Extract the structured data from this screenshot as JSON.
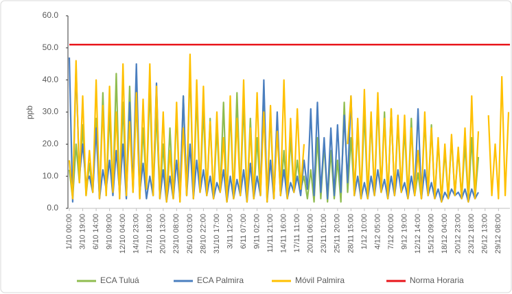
{
  "chart_data": {
    "type": "line",
    "y_label": "ppb",
    "categories": [
      "1/10 00:00",
      null,
      null,
      null,
      "3/10 19:00",
      null,
      null,
      null,
      "6/10 14:00",
      null,
      null,
      null,
      "9/10 09:00",
      null,
      null,
      null,
      "12/10 04:00",
      null,
      null,
      null,
      "14/10 23:00",
      null,
      null,
      null,
      "17/10 18:00",
      null,
      null,
      null,
      "20/10 13:00",
      null,
      null,
      null,
      "23/10 08:00",
      null,
      null,
      null,
      "26/10 03:00",
      null,
      null,
      null,
      "28/10 22:00",
      null,
      null,
      null,
      "31/10 17:00",
      null,
      null,
      null,
      "3/11 12:00",
      null,
      null,
      null,
      "6/11 07:00",
      null,
      null,
      null,
      "9/11 02:00",
      null,
      null,
      null,
      "11/11 21:00",
      null,
      null,
      null,
      "14/11 16:00",
      null,
      null,
      null,
      "17/11 11:00",
      null,
      null,
      null,
      "20/11 06:00",
      null,
      null,
      null,
      "23/11 01:00",
      null,
      null,
      null,
      "25/11 20:00",
      null,
      null,
      null,
      "28/11 15:00",
      null,
      null,
      null,
      "1/12 10:00",
      null,
      null,
      null,
      "4/12 05:00",
      null,
      null,
      null,
      "7/12 00:00",
      null,
      null,
      null,
      "9/12 19:00",
      null,
      null,
      null,
      "12/12 14:00",
      null,
      null,
      null,
      "15/12 09:00",
      null,
      null,
      null,
      "18/12 04:00",
      null,
      null,
      null,
      "20/12 23:00",
      null,
      null,
      null,
      "23/12 18:00",
      null,
      null,
      null,
      "26/12 13:00",
      null,
      null,
      null,
      "29/12 08:00",
      null,
      null,
      null
    ],
    "series": [
      {
        "name": "ECA Tuluá",
        "color": "#8fbc4f",
        "values": [
          12,
          3,
          20,
          8,
          26,
          4,
          14,
          5,
          28,
          3,
          36,
          4,
          30,
          5,
          42,
          3,
          33,
          4,
          38,
          5,
          34,
          3,
          25,
          6,
          38,
          4,
          30,
          3,
          20,
          2,
          25,
          3,
          30,
          2,
          35,
          4,
          44,
          3,
          35,
          5,
          31,
          4,
          28,
          3,
          25,
          5,
          33,
          2,
          31,
          3,
          36,
          4,
          33,
          2,
          28,
          3,
          22,
          4,
          38,
          2,
          30,
          3,
          25,
          4,
          18,
          3,
          22,
          5,
          15,
          6,
          10,
          3,
          12,
          2,
          22,
          3,
          20,
          2,
          18,
          3,
          15,
          2,
          33,
          5,
          22,
          4,
          25,
          3,
          30,
          3,
          28,
          4,
          33,
          5,
          30,
          3,
          31,
          4,
          27,
          5,
          25,
          3,
          28,
          4,
          11,
          3,
          28,
          4,
          26,
          3,
          21,
          2,
          18,
          3,
          22,
          4,
          18,
          3,
          20,
          2,
          22,
          3,
          16,
          null,
          null,
          null,
          null,
          null,
          null,
          null,
          null,
          null
        ]
      },
      {
        "name": "ECA Palmira",
        "color": "#4a7ebf",
        "values": [
          47,
          2,
          44,
          10,
          20,
          8,
          10,
          5,
          25,
          3,
          12,
          6,
          15,
          4,
          18,
          5,
          20,
          3,
          33,
          6,
          45,
          5,
          14,
          3,
          10,
          4,
          39,
          3,
          12,
          2,
          10,
          3,
          15,
          3,
          35,
          4,
          20,
          3,
          15,
          5,
          12,
          4,
          10,
          3,
          8,
          5,
          12,
          2,
          10,
          3,
          9,
          4,
          12,
          2,
          14,
          3,
          10,
          4,
          40,
          2,
          15,
          3,
          30,
          4,
          12,
          3,
          8,
          5,
          10,
          4,
          15,
          6,
          31,
          4,
          33,
          5,
          22,
          3,
          25,
          4,
          26,
          5,
          29,
          8,
          35,
          4,
          10,
          3,
          8,
          3,
          10,
          4,
          12,
          5,
          9,
          3,
          10,
          4,
          12,
          5,
          8,
          3,
          10,
          4,
          31,
          3,
          12,
          4,
          8,
          3,
          6,
          2,
          5,
          3,
          6,
          4,
          5,
          3,
          6,
          2,
          6,
          3,
          5,
          null,
          null,
          null,
          null,
          null,
          null,
          null,
          null,
          null
        ]
      },
      {
        "name": "Móvil  Palmira",
        "color": "#ffc000",
        "values": [
          15,
          3,
          46,
          8,
          35,
          4,
          18,
          5,
          40,
          3,
          32,
          4,
          38,
          5,
          30,
          3,
          45,
          4,
          27,
          5,
          36,
          3,
          34,
          6,
          45,
          4,
          38,
          3,
          30,
          2,
          18,
          3,
          33,
          2,
          25,
          4,
          48,
          3,
          40,
          5,
          38,
          4,
          27,
          3,
          30,
          5,
          22,
          2,
          35,
          3,
          28,
          4,
          40,
          2,
          25,
          3,
          36,
          4,
          30,
          2,
          32,
          3,
          24,
          4,
          40,
          3,
          28,
          5,
          31,
          6,
          20,
          null,
          null,
          null,
          null,
          null,
          null,
          null,
          null,
          null,
          null,
          null,
          null,
          20,
          35,
          4,
          28,
          3,
          37,
          3,
          30,
          4,
          36,
          5,
          28,
          3,
          31,
          4,
          29,
          5,
          29,
          3,
          25,
          4,
          18,
          3,
          30,
          4,
          25,
          3,
          22,
          2,
          20,
          3,
          23,
          4,
          19,
          3,
          25,
          2,
          35,
          3,
          24,
          null,
          null,
          29,
          4,
          20,
          3,
          41,
          4,
          30
        ]
      }
    ],
    "threshold": {
      "name": "Norma Horaria",
      "value": 51,
      "color": "#e8141a"
    },
    "ylim": [
      0,
      60
    ],
    "yticks": [
      {
        "value": 0,
        "label": "0.0"
      },
      {
        "value": 10,
        "label": "10.0"
      },
      {
        "value": 20,
        "label": "20.0"
      },
      {
        "value": 30,
        "label": "30.0"
      },
      {
        "value": 40,
        "label": "40.0"
      },
      {
        "value": 50,
        "label": "50.0"
      },
      {
        "value": 60,
        "label": "60.0"
      }
    ],
    "legend": "bottom"
  }
}
